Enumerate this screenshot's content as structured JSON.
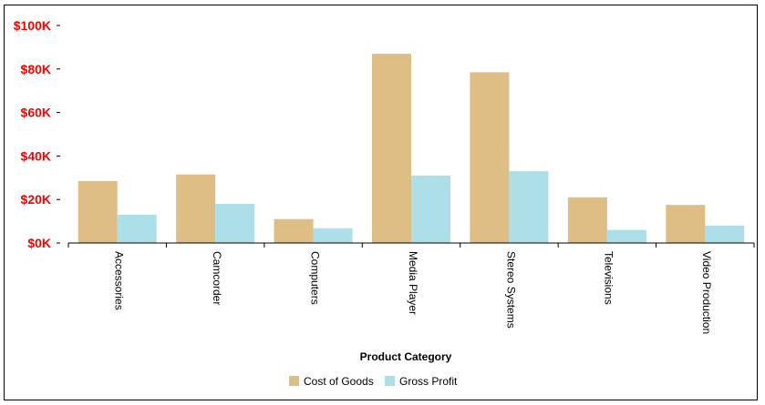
{
  "chart_data": {
    "type": "bar",
    "categories": [
      "Accessories",
      "Camcorder",
      "Computers",
      "Media Player",
      "Stereo Systems",
      "Televisions",
      "Video Production"
    ],
    "series": [
      {
        "name": "Cost of Goods",
        "color": "#DEBE84",
        "values": [
          28500,
          31500,
          11000,
          87000,
          78500,
          21000,
          17500
        ]
      },
      {
        "name": "Gross Profit",
        "color": "#ADDFE8",
        "values": [
          13000,
          18000,
          6800,
          31000,
          33000,
          6000,
          8000
        ]
      }
    ],
    "title": "",
    "xlabel": "Product Category",
    "ylabel": "",
    "ylim": [
      0,
      100000
    ],
    "yticks": [
      {
        "value": 0,
        "label": "$0K"
      },
      {
        "value": 20000,
        "label": "$20K"
      },
      {
        "value": 40000,
        "label": "$40K"
      },
      {
        "value": 60000,
        "label": "$60K"
      },
      {
        "value": 80000,
        "label": "$80K"
      },
      {
        "value": 100000,
        "label": "$100K"
      }
    ],
    "ytick_color": "#FF0000",
    "grid": false,
    "legend_position": "bottom"
  }
}
